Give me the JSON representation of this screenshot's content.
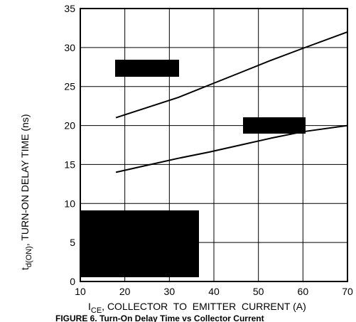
{
  "chart_data": {
    "type": "line",
    "title": "",
    "caption": "FIGURE 6. Turn-On Delay Time vs Collector Current",
    "ylabel": {
      "main": "t",
      "sub": "d(ON)",
      "rest": ", TURN-ON DELAY TIME (ns)"
    },
    "xlabel": {
      "main": "I",
      "sub": "CE",
      "rest": ", COLLECTOR  TO  EMITTER  CURRENT (A)"
    },
    "xlim": [
      10,
      70
    ],
    "ylim": [
      0,
      35
    ],
    "xticks": [
      10,
      20,
      30,
      40,
      50,
      60,
      70
    ],
    "yticks": [
      0,
      5,
      10,
      15,
      20,
      25,
      30,
      35
    ],
    "grid": true,
    "series": [
      {
        "x": [
          18,
          25,
          32,
          39,
          46,
          53,
          60,
          70
        ],
        "values": [
          21,
          22.3,
          23.6,
          25.2,
          26.8,
          28.4,
          29.9,
          32
        ]
      },
      {
        "x": [
          18,
          25,
          32,
          39,
          46,
          53,
          60,
          70
        ],
        "values": [
          14,
          14.9,
          15.8,
          16.6,
          17.5,
          18.4,
          19.2,
          20
        ]
      }
    ],
    "line_color": "#000000",
    "redaction_color": "#000000"
  }
}
